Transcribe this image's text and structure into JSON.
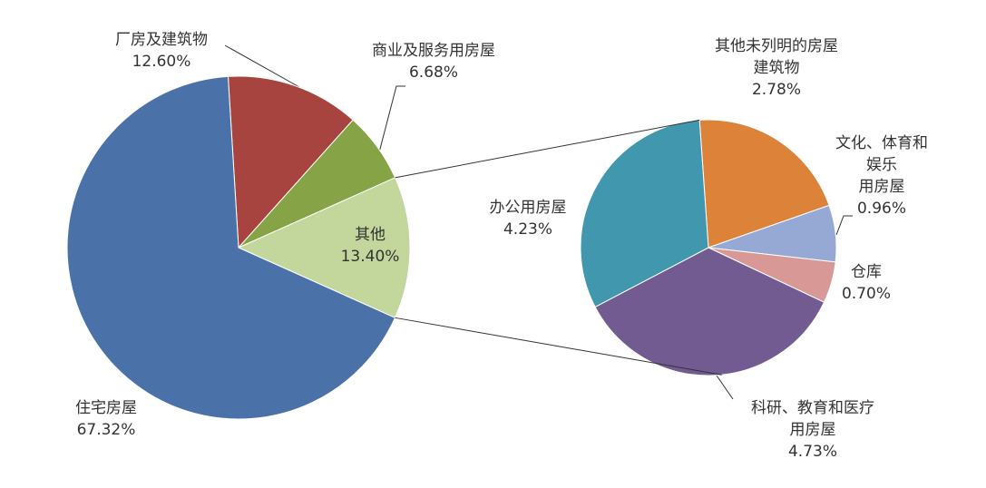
{
  "chart_data": [
    {
      "type": "pie",
      "categories": [
        "厂房及建筑物",
        "商业及服务用房屋",
        "其他",
        "住宅房屋"
      ],
      "values": [
        12.6,
        6.68,
        13.4,
        67.32
      ],
      "value_labels": [
        "12.60%",
        "6.68%",
        "13.40%",
        "67.32%"
      ],
      "colors": [
        "#a84440",
        "#86a346",
        "#c3d69b",
        "#4a72a8"
      ]
    },
    {
      "type": "pie",
      "categories": [
        "其他未列明的房屋\n建筑物",
        "文化、体育和娱乐\n用房屋",
        "仓库",
        "科研、教育和医疗\n用房屋",
        "办公用房屋"
      ],
      "values": [
        2.78,
        0.96,
        0.7,
        4.73,
        4.23
      ],
      "value_labels": [
        "2.78%",
        "0.96%",
        "0.70%",
        "4.73%",
        "4.23%"
      ],
      "colors": [
        "#dd8239",
        "#95a9d4",
        "#d79896",
        "#715b91",
        "#4197ad"
      ]
    }
  ]
}
